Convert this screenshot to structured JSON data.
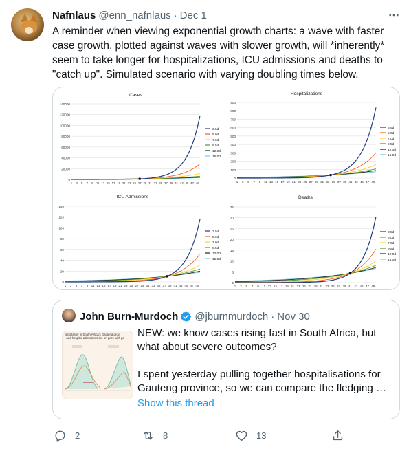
{
  "tweet": {
    "author_name": "Nafnlaus",
    "handle": "@enn_nafnlaus",
    "separator": "·",
    "date": "Dec 1",
    "text": "A reminder when viewing exponential growth charts: a wave with faster case growth, plotted against waves with slower growth, will *inherently* seem to take longer for hospitalizations, ICU admissions and deaths to \"catch up\". Simulated scenario with varying doubling times below.",
    "more_icon": "more-horizontal-icon"
  },
  "legend_labels": [
    "3.5d",
    "5.0d",
    "7.0d",
    "9.5d",
    "12.0d",
    "15.0d"
  ],
  "series_colors": [
    "#1f3d7a",
    "#ff5a1f",
    "#ffd32a",
    "#4e9a2a",
    "#222222",
    "#7ec8e3"
  ],
  "chart_data": [
    {
      "type": "line",
      "title": "Cases",
      "xlabel": "",
      "ylabel": "",
      "x_ticks": [
        "1",
        "3",
        "5",
        "7",
        "9",
        "11",
        "13",
        "15",
        "17",
        "19",
        "21",
        "23",
        "25",
        "27",
        "29",
        "31",
        "33",
        "35",
        "37",
        "39",
        "41",
        "43",
        "45",
        "47",
        "49"
      ],
      "y_ticks": [
        "0",
        "20000",
        "40000",
        "60000",
        "80000",
        "100000",
        "120000",
        "140000"
      ],
      "ylim": [
        0,
        140000
      ],
      "crossover_x": 27,
      "series": [
        {
          "name": "3.5d",
          "end_value": 118000
        },
        {
          "name": "5.0d",
          "end_value": 29000
        },
        {
          "name": "7.0d",
          "end_value": 11000
        },
        {
          "name": "9.5d",
          "end_value": 6000
        },
        {
          "name": "12.0d",
          "end_value": 4200
        },
        {
          "name": "15.0d",
          "end_value": 3200
        }
      ]
    },
    {
      "type": "line",
      "title": "Hospitalizations",
      "xlabel": "",
      "ylabel": "",
      "x_ticks": [
        "1",
        "3",
        "5",
        "7",
        "9",
        "11",
        "13",
        "15",
        "17",
        "19",
        "21",
        "23",
        "25",
        "27",
        "29",
        "31",
        "33",
        "35",
        "37",
        "39",
        "41",
        "43",
        "45",
        "47",
        "49"
      ],
      "y_ticks": [
        "0",
        "100",
        "200",
        "300",
        "400",
        "500",
        "600",
        "700",
        "800",
        "900"
      ],
      "ylim": [
        0,
        900
      ],
      "crossover_x": 34,
      "series": [
        {
          "name": "3.5d",
          "end_value": 840
        },
        {
          "name": "5.0d",
          "end_value": 300
        },
        {
          "name": "7.0d",
          "end_value": 160
        },
        {
          "name": "9.5d",
          "end_value": 110
        },
        {
          "name": "12.0d",
          "end_value": 90
        },
        {
          "name": "15.0d",
          "end_value": 75
        }
      ]
    },
    {
      "type": "line",
      "title": "ICU Admissions",
      "xlabel": "",
      "ylabel": "",
      "x_ticks": [
        "1",
        "3",
        "5",
        "7",
        "9",
        "11",
        "13",
        "15",
        "17",
        "19",
        "21",
        "23",
        "25",
        "27",
        "29",
        "31",
        "33",
        "35",
        "37",
        "39",
        "41",
        "43",
        "45",
        "47",
        "49"
      ],
      "y_ticks": [
        "0",
        "20",
        "40",
        "60",
        "80",
        "100",
        "120",
        "140"
      ],
      "ylim": [
        0,
        140
      ],
      "crossover_x": 38,
      "series": [
        {
          "name": "3.5d",
          "end_value": 116
        },
        {
          "name": "5.0d",
          "end_value": 52
        },
        {
          "name": "7.0d",
          "end_value": 31
        },
        {
          "name": "9.5d",
          "end_value": 24
        },
        {
          "name": "12.0d",
          "end_value": 20
        },
        {
          "name": "15.0d",
          "end_value": 18
        }
      ]
    },
    {
      "type": "line",
      "title": "Deaths",
      "xlabel": "",
      "ylabel": "",
      "x_ticks": [
        "1",
        "3",
        "5",
        "7",
        "9",
        "11",
        "13",
        "15",
        "17",
        "19",
        "21",
        "23",
        "25",
        "27",
        "29",
        "31",
        "33",
        "35",
        "37",
        "39",
        "41",
        "43",
        "45",
        "47",
        "49"
      ],
      "y_ticks": [
        "0",
        "5",
        "10",
        "15",
        "20",
        "25",
        "30",
        "35"
      ],
      "ylim": [
        0,
        35
      ],
      "crossover_x": 41,
      "series": [
        {
          "name": "3.5d",
          "end_value": 30.5
        },
        {
          "name": "5.0d",
          "end_value": 15.5
        },
        {
          "name": "7.0d",
          "end_value": 10
        },
        {
          "name": "9.5d",
          "end_value": 8
        },
        {
          "name": "12.0d",
          "end_value": 7
        },
        {
          "name": "15.0d",
          "end_value": 6.5
        }
      ]
    }
  ],
  "quote": {
    "author_name": "John Burn-Murdoch",
    "handle": "@jburnmurdoch",
    "separator": "·",
    "date": "Nov 30",
    "paragraph1": "NEW: we know cases rising fast in South Africa, but what about severe outcomes?",
    "paragraph2": "I spent yesterday pulling together hospitalisations for Gauteng province, so we can compare the fledging …",
    "show_thread": "Show this thread",
    "thumb_caption_1": "ising faster in South Africa's Gauteng prov",
    "thumb_caption_2": ", and hospital admissions are on pace with pa"
  },
  "actions": {
    "reply_count": "2",
    "retweet_count": "8",
    "like_count": "13"
  }
}
